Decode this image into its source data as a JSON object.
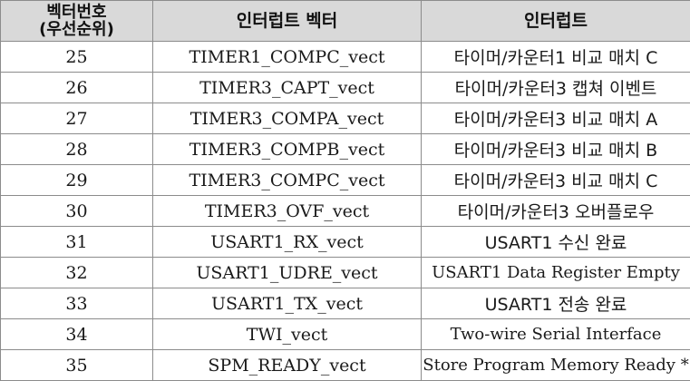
{
  "table": {
    "headers": {
      "col1_line1": "벡터번호",
      "col1_line2": "(우선순위)",
      "col2": "인터럽트 벡터",
      "col3": "인터럽트"
    },
    "rows": [
      {
        "num": "25",
        "vector": "TIMER1_COMPC_vect",
        "desc": "타이머/카운터1 비교 매치 C"
      },
      {
        "num": "26",
        "vector": "TIMER3_CAPT_vect",
        "desc": "타이머/카운터3 캡쳐 이벤트"
      },
      {
        "num": "27",
        "vector": "TIMER3_COMPA_vect",
        "desc": "타이머/카운터3 비교 매치 A"
      },
      {
        "num": "28",
        "vector": "TIMER3_COMPB_vect",
        "desc": "타이머/카운터3 비교 매치 B"
      },
      {
        "num": "29",
        "vector": "TIMER3_COMPC_vect",
        "desc": "타이머/카운터3 비교 매치 C"
      },
      {
        "num": "30",
        "vector": "TIMER3_OVF_vect",
        "desc": "타이머/카운터3 오버플로우"
      },
      {
        "num": "31",
        "vector": "USART1_RX_vect",
        "desc": "USART1 수신 완료"
      },
      {
        "num": "32",
        "vector": "USART1_UDRE_vect",
        "desc": "USART1 Data Register Empty"
      },
      {
        "num": "33",
        "vector": "USART1_TX_vect",
        "desc": "USART1 전송 완료"
      },
      {
        "num": "34",
        "vector": "TWI_vect",
        "desc": "Two-wire Serial Interface"
      },
      {
        "num": "35",
        "vector": "SPM_READY_vect",
        "desc": "Store Program Memory Ready *"
      }
    ]
  }
}
